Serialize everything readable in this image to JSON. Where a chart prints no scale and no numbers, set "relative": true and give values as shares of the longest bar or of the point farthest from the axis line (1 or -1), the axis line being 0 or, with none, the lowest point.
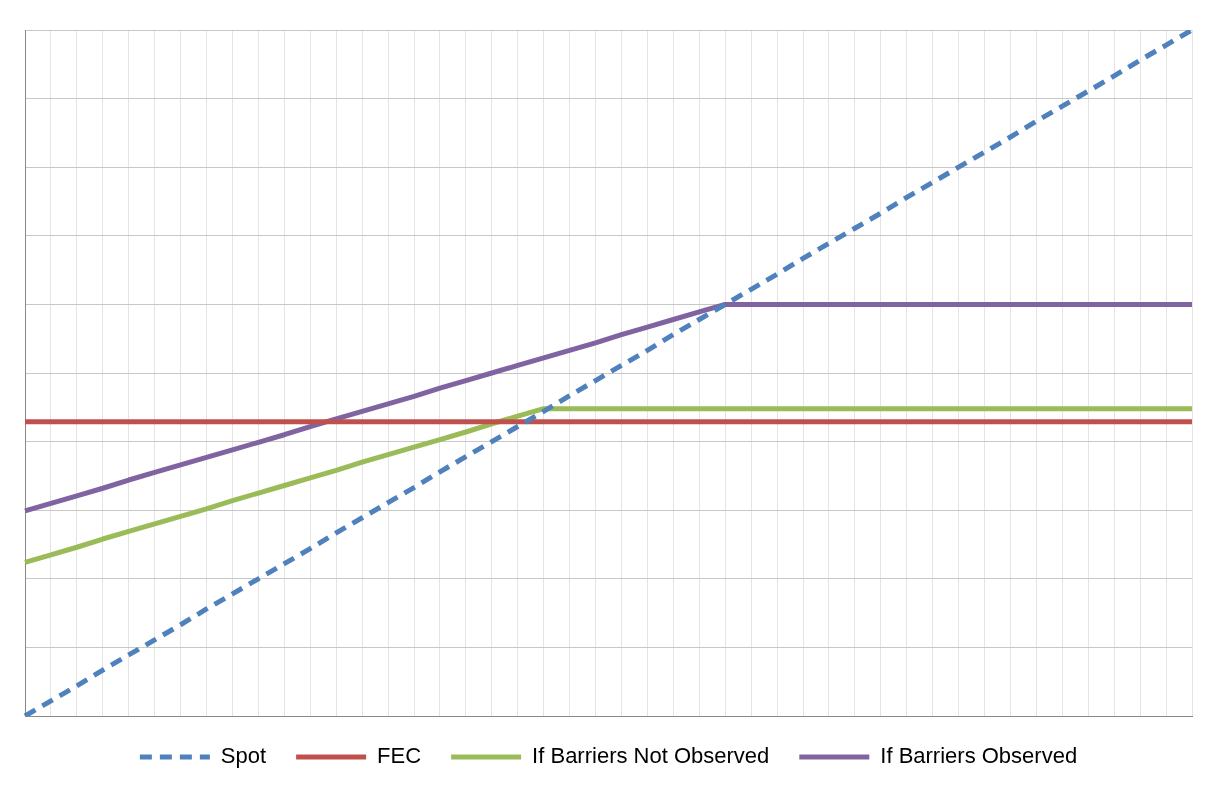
{
  "chart_data": {
    "type": "line",
    "relative": true,
    "marker": "none",
    "grid": true,
    "legend": "bottom",
    "categories": [
      null,
      null,
      null,
      null,
      null,
      null,
      null,
      null,
      null,
      null,
      null,
      null,
      null,
      null,
      null,
      null,
      null,
      null,
      null,
      null,
      null,
      null,
      null,
      null,
      null,
      null,
      null,
      null,
      null,
      null,
      null,
      null,
      null,
      null,
      null,
      null,
      null,
      null,
      null,
      null,
      null,
      null,
      null,
      null,
      null,
      null
    ],
    "series": [
      {
        "name": "Spot",
        "color": "#4f81bd",
        "line_style": "dashed",
        "values": [
          0,
          0.022,
          0.044,
          0.067,
          0.089,
          0.111,
          0.133,
          0.156,
          0.178,
          0.2,
          0.222,
          0.244,
          0.267,
          0.289,
          0.311,
          0.333,
          0.356,
          0.378,
          0.4,
          0.422,
          0.444,
          0.467,
          0.489,
          0.511,
          0.533,
          0.556,
          0.578,
          0.6,
          0.622,
          0.644,
          0.667,
          0.689,
          0.711,
          0.733,
          0.756,
          0.778,
          0.8,
          0.822,
          0.844,
          0.867,
          0.889,
          0.911,
          0.933,
          0.956,
          0.978,
          1
        ]
      },
      {
        "name": "FEC",
        "color": "#c0504d",
        "line_style": "solid",
        "values": [
          0.429,
          0.429,
          0.429,
          0.429,
          0.429,
          0.429,
          0.429,
          0.429,
          0.429,
          0.429,
          0.429,
          0.429,
          0.429,
          0.429,
          0.429,
          0.429,
          0.429,
          0.429,
          0.429,
          0.429,
          0.429,
          0.429,
          0.429,
          0.429,
          0.429,
          0.429,
          0.429,
          0.429,
          0.429,
          0.429,
          0.429,
          0.429,
          0.429,
          0.429,
          0.429,
          0.429,
          0.429,
          0.429,
          0.429,
          0.429,
          0.429,
          0.429,
          0.429,
          0.429,
          0.429,
          0.429
        ]
      },
      {
        "name": "If Barriers Not Observed",
        "color": "#9bbb59",
        "line_style": "solid",
        "values": [
          0.224,
          0.235,
          0.246,
          0.258,
          0.269,
          0.28,
          0.291,
          0.302,
          0.314,
          0.325,
          0.336,
          0.347,
          0.358,
          0.37,
          0.381,
          0.392,
          0.403,
          0.414,
          0.426,
          0.437,
          0.448,
          0.448,
          0.448,
          0.448,
          0.448,
          0.448,
          0.448,
          0.448,
          0.448,
          0.448,
          0.448,
          0.448,
          0.448,
          0.448,
          0.448,
          0.448,
          0.448,
          0.448,
          0.448,
          0.448,
          0.448,
          0.448,
          0.448,
          0.448,
          0.448,
          0.448
        ]
      },
      {
        "name": "If Barriers Observed",
        "color": "#8064a2",
        "line_style": "solid",
        "values": [
          0.299,
          0.31,
          0.321,
          0.332,
          0.344,
          0.355,
          0.366,
          0.377,
          0.388,
          0.399,
          0.41,
          0.422,
          0.433,
          0.444,
          0.455,
          0.466,
          0.478,
          0.489,
          0.5,
          0.511,
          0.522,
          0.533,
          0.544,
          0.556,
          0.567,
          0.578,
          0.589,
          0.6,
          0.6,
          0.6,
          0.6,
          0.6,
          0.6,
          0.6,
          0.6,
          0.6,
          0.6,
          0.6,
          0.6,
          0.6,
          0.6,
          0.6,
          0.6,
          0.6,
          0.6,
          0.6
        ]
      }
    ]
  }
}
